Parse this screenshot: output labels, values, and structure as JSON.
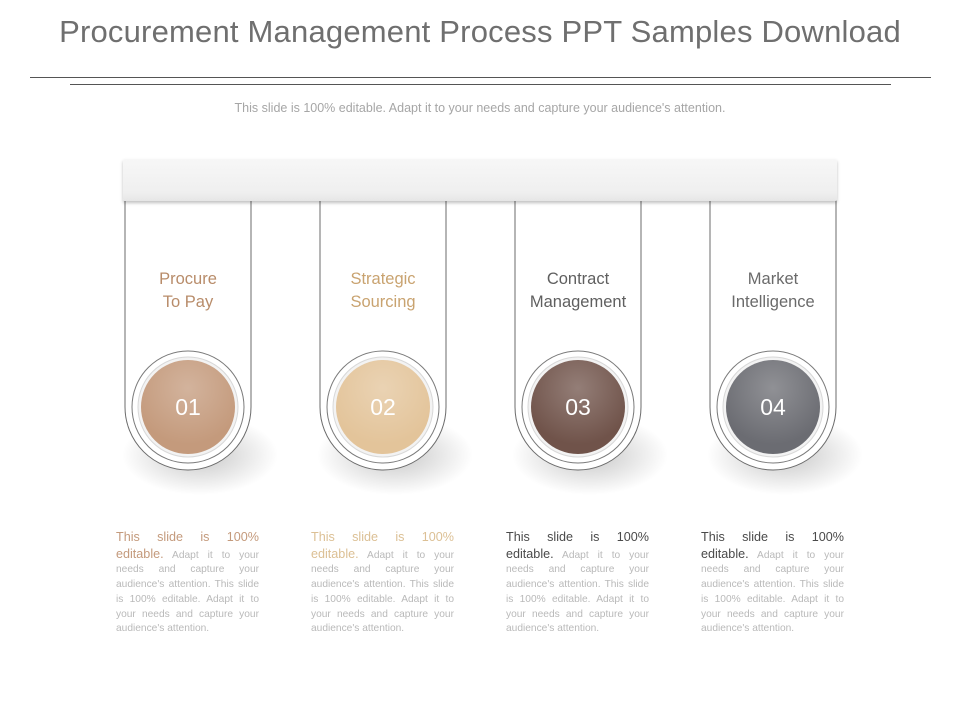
{
  "title": "Procurement Management Process PPT Samples Download",
  "subtitle": "This slide is 100% editable. Adapt it to your needs and capture your audience's attention.",
  "steps": [
    {
      "number": "01",
      "label_line1": "Procure",
      "label_line2": "To Pay",
      "color": "#c49a7c",
      "label_color": "#b88c6a",
      "desc_lead": "This slide is 100% editable.",
      "desc_body": " Adapt it to your needs and capture your audience's attention. This slide is 100% editable. Adapt it to your needs and capture your audience's attention.",
      "lead_color": "#c49a7c"
    },
    {
      "number": "02",
      "label_line1": "Strategic",
      "label_line2": "Sourcing",
      "color": "#e3c49a",
      "label_color": "#c9a370",
      "desc_lead": "This slide is 100% editable.",
      "desc_body": " Adapt it to your needs and capture your audience's attention. This slide is 100% editable. Adapt it to your needs and capture your audience's attention.",
      "lead_color": "#dcc095"
    },
    {
      "number": "03",
      "label_line1": "Contract",
      "label_line2": "Management",
      "color": "#70534a",
      "label_color": "#5f5f5f",
      "desc_lead": "This slide is 100% editable.",
      "desc_body": " Adapt it to your needs and capture your audience's attention. This slide is 100% editable. Adapt it to your needs and capture your audience's attention.",
      "lead_color": "#4a4a4a"
    },
    {
      "number": "04",
      "label_line1": "Market",
      "label_line2": "Intelligence",
      "color": "#6b6c72",
      "label_color": "#6a6a6a",
      "desc_lead": "This slide is 100% editable.",
      "desc_body": " Adapt it to your needs and capture your audience's attention. This slide is 100% editable. Adapt it to your needs and capture your audience's attention.",
      "lead_color": "#4a4a4a"
    }
  ]
}
